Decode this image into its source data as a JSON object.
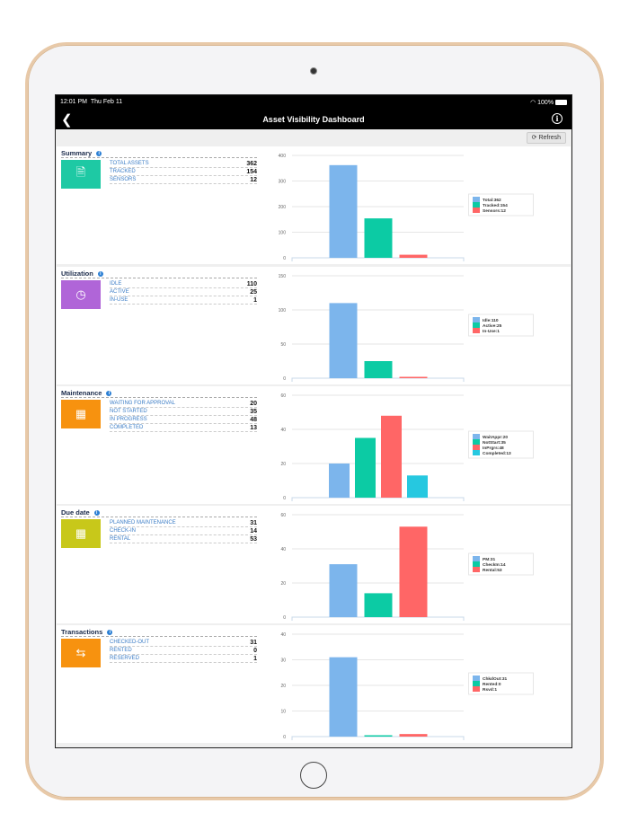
{
  "status_bar": {
    "time": "12:01 PM",
    "date": "Thu Feb 11",
    "battery": "100%"
  },
  "nav": {
    "title": "Asset Visibility Dashboard",
    "back_icon": "chevron-left-icon",
    "info_icon": "info-icon"
  },
  "toolbar": {
    "refresh_label": "Refresh"
  },
  "colors": {
    "blue": "#7cb5ec",
    "green": "#0ccba4",
    "red": "#ff6666",
    "cyan": "#26c8e0"
  },
  "sections": [
    {
      "title": "Summary",
      "icon": "document-icon",
      "icon_color": "#1ec9a4",
      "rows": [
        {
          "label": "TOTAL ASSETS",
          "value": "362"
        },
        {
          "label": "TRACKED",
          "value": "154"
        },
        {
          "label": "SENSORS",
          "value": "12"
        }
      ],
      "chart_data": {
        "type": "bar",
        "categories": [
          "Total",
          "Tracked",
          "Sensors"
        ],
        "values": [
          362,
          154,
          12
        ],
        "colors": [
          "#7cb5ec",
          "#0ccba4",
          "#ff6666"
        ],
        "legend": [
          "Total:362",
          "Tracked:154",
          "Sensors:12"
        ],
        "ylim": [
          0,
          400
        ],
        "yticks": [
          0,
          100,
          200,
          300,
          400
        ],
        "legend_position": "right",
        "grid": true
      }
    },
    {
      "title": "Utilization",
      "icon": "clock-icon",
      "icon_color": "#b065d8",
      "rows": [
        {
          "label": "IDLE",
          "value": "110"
        },
        {
          "label": "ACTIVE",
          "value": "25"
        },
        {
          "label": "IN-USE",
          "value": "1"
        }
      ],
      "chart_data": {
        "type": "bar",
        "categories": [
          "Idle",
          "Active",
          "In-Use"
        ],
        "values": [
          110,
          25,
          1
        ],
        "colors": [
          "#7cb5ec",
          "#0ccba4",
          "#ff6666"
        ],
        "legend": [
          "Idle:110",
          "Active:25",
          "In-Use:1"
        ],
        "ylim": [
          0,
          150
        ],
        "yticks": [
          0,
          50,
          100,
          150
        ],
        "legend_position": "right",
        "grid": true
      }
    },
    {
      "title": "Maintenance",
      "icon": "calendar-icon",
      "icon_color": "#f7920f",
      "rows": [
        {
          "label": "WAITING FOR APPROVAL",
          "value": "20"
        },
        {
          "label": "NOT STARTED",
          "value": "35"
        },
        {
          "label": "IN PROGRESS",
          "value": "48"
        },
        {
          "label": "COMPLETED",
          "value": "13"
        }
      ],
      "chart_data": {
        "type": "bar",
        "categories": [
          "WaitAppr",
          "NotStart",
          "InPrgrs",
          "Completed"
        ],
        "values": [
          20,
          35,
          48,
          13
        ],
        "colors": [
          "#7cb5ec",
          "#0ccba4",
          "#ff6666",
          "#26c8e0"
        ],
        "legend": [
          "WaitAppr:20",
          "NotStart:35",
          "InPrgrs:48",
          "Completed:13"
        ],
        "ylim": [
          0,
          60
        ],
        "yticks": [
          0,
          20,
          40,
          60
        ],
        "legend_position": "right",
        "grid": true
      }
    },
    {
      "title": "Due date",
      "icon": "calendar-icon",
      "icon_color": "#c8c81a",
      "rows": [
        {
          "label": "PLANNED MAINTENANCE",
          "value": "31"
        },
        {
          "label": "CHECK-IN",
          "value": "14"
        },
        {
          "label": "RENTAL",
          "value": "53"
        }
      ],
      "chart_data": {
        "type": "bar",
        "categories": [
          "PM",
          "CheckIn",
          "Rental"
        ],
        "values": [
          31,
          14,
          53
        ],
        "colors": [
          "#7cb5ec",
          "#0ccba4",
          "#ff6666"
        ],
        "legend": [
          "PM:31",
          "CheckIn:14",
          "Rental:53"
        ],
        "ylim": [
          0,
          60
        ],
        "yticks": [
          0,
          20,
          40,
          60
        ],
        "legend_position": "right",
        "grid": true
      }
    },
    {
      "title": "Transactions",
      "icon": "transfer-arrows-icon",
      "icon_color": "#f7920f",
      "rows": [
        {
          "label": "CHECKED-OUT",
          "value": "31"
        },
        {
          "label": "RENTED",
          "value": "0"
        },
        {
          "label": "RESERVED",
          "value": "1"
        }
      ],
      "chart_data": {
        "type": "bar",
        "categories": [
          "ChkdOut",
          "Rented",
          "Rsvd"
        ],
        "values": [
          31,
          0,
          1
        ],
        "colors": [
          "#7cb5ec",
          "#0ccba4",
          "#ff6666"
        ],
        "legend": [
          "ChkdOut:31",
          "Rented:0",
          "Rsvd:1"
        ],
        "ylim": [
          0,
          40
        ],
        "yticks": [
          0,
          10,
          20,
          30,
          40
        ],
        "legend_position": "right",
        "grid": true
      }
    }
  ]
}
